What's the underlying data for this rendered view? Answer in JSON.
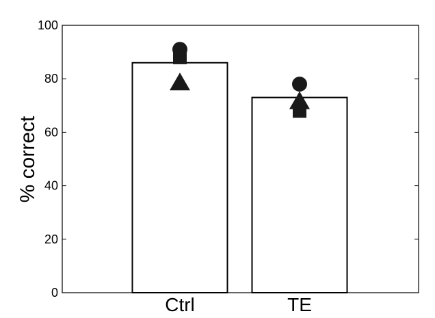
{
  "chart_data": {
    "type": "bar",
    "ylabel": "% correct",
    "ylim": [
      0,
      100
    ],
    "yticks": [
      "0",
      "20",
      "40",
      "60",
      "80",
      "100"
    ],
    "categories": [
      "Ctrl",
      "TE"
    ],
    "values": [
      86,
      73
    ],
    "points": [
      {
        "category": "Ctrl",
        "marker": "circle",
        "value": 91
      },
      {
        "category": "Ctrl",
        "marker": "square",
        "value": 88
      },
      {
        "category": "Ctrl",
        "marker": "triangle",
        "value": 79
      },
      {
        "category": "TE",
        "marker": "circle",
        "value": 78
      },
      {
        "category": "TE",
        "marker": "triangle",
        "value": 72
      },
      {
        "category": "TE",
        "marker": "square",
        "value": 68
      }
    ],
    "grid": false,
    "colors": {
      "bar_fill": "#ffffff",
      "bar_stroke": "#000000",
      "marker": "#1a1a1a"
    }
  }
}
